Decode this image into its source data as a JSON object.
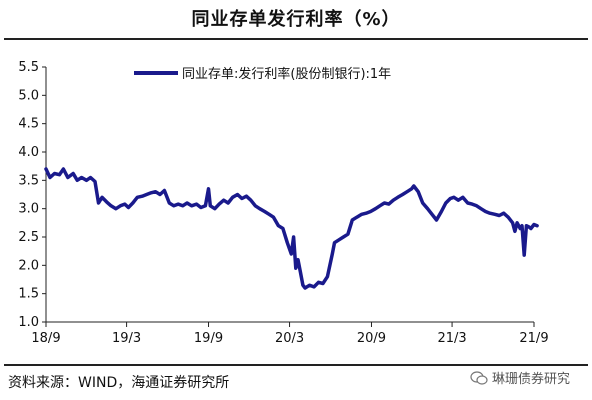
{
  "header": {
    "title": "同业存单发行利率（%）"
  },
  "footer": {
    "source": "资料来源：WIND，海通证券研究所",
    "watermark": "琳珊债券研究"
  },
  "colors": {
    "series": "#1a1a8c",
    "axis": "#222222"
  },
  "chart_data": {
    "type": "line",
    "title": "同业存单发行利率（%）",
    "xlabel": "",
    "ylabel": "",
    "ylim": [
      1.0,
      5.5
    ],
    "yticks": [
      "5.5",
      "5.0",
      "4.5",
      "4.0",
      "3.5",
      "3.0",
      "2.5",
      "2.0",
      "1.5",
      "1.0"
    ],
    "xticks": [
      "18/9",
      "19/3",
      "19/9",
      "20/3",
      "20/9",
      "21/3",
      "21/9"
    ],
    "legend": "top",
    "grid": false,
    "series": [
      {
        "name": "同业存单:发行利率(股份制银行):1年",
        "points": [
          [
            "2018-09-01",
            3.7
          ],
          [
            "2018-09-10",
            3.55
          ],
          [
            "2018-09-20",
            3.62
          ],
          [
            "2018-10-01",
            3.6
          ],
          [
            "2018-10-10",
            3.7
          ],
          [
            "2018-10-20",
            3.55
          ],
          [
            "2018-11-01",
            3.62
          ],
          [
            "2018-11-10",
            3.5
          ],
          [
            "2018-11-20",
            3.55
          ],
          [
            "2018-12-01",
            3.5
          ],
          [
            "2018-12-10",
            3.55
          ],
          [
            "2018-12-20",
            3.48
          ],
          [
            "2018-12-28",
            3.1
          ],
          [
            "2019-01-05",
            3.2
          ],
          [
            "2019-01-15",
            3.12
          ],
          [
            "2019-01-25",
            3.05
          ],
          [
            "2019-02-05",
            3.0
          ],
          [
            "2019-02-15",
            3.05
          ],
          [
            "2019-02-25",
            3.08
          ],
          [
            "2019-03-05",
            3.02
          ],
          [
            "2019-03-15",
            3.1
          ],
          [
            "2019-03-25",
            3.2
          ],
          [
            "2019-04-05",
            3.22
          ],
          [
            "2019-04-15",
            3.25
          ],
          [
            "2019-04-25",
            3.28
          ],
          [
            "2019-05-05",
            3.3
          ],
          [
            "2019-05-15",
            3.25
          ],
          [
            "2019-05-25",
            3.32
          ],
          [
            "2019-06-05",
            3.1
          ],
          [
            "2019-06-15",
            3.05
          ],
          [
            "2019-06-25",
            3.08
          ],
          [
            "2019-07-05",
            3.05
          ],
          [
            "2019-07-15",
            3.1
          ],
          [
            "2019-07-25",
            3.05
          ],
          [
            "2019-08-05",
            3.08
          ],
          [
            "2019-08-15",
            3.02
          ],
          [
            "2019-08-25",
            3.05
          ],
          [
            "2019-09-01",
            3.35
          ],
          [
            "2019-09-05",
            3.05
          ],
          [
            "2019-09-15",
            3.0
          ],
          [
            "2019-09-25",
            3.08
          ],
          [
            "2019-10-05",
            3.15
          ],
          [
            "2019-10-15",
            3.1
          ],
          [
            "2019-10-25",
            3.2
          ],
          [
            "2019-11-05",
            3.25
          ],
          [
            "2019-11-15",
            3.18
          ],
          [
            "2019-11-25",
            3.22
          ],
          [
            "2019-12-05",
            3.15
          ],
          [
            "2019-12-15",
            3.05
          ],
          [
            "2019-12-25",
            3.0
          ],
          [
            "2020-01-05",
            2.95
          ],
          [
            "2020-01-15",
            2.9
          ],
          [
            "2020-01-25",
            2.85
          ],
          [
            "2020-02-05",
            2.7
          ],
          [
            "2020-02-15",
            2.65
          ],
          [
            "2020-02-25",
            2.4
          ],
          [
            "2020-03-05",
            2.2
          ],
          [
            "2020-03-10",
            2.5
          ],
          [
            "2020-03-15",
            1.95
          ],
          [
            "2020-03-20",
            2.1
          ],
          [
            "2020-03-25",
            1.9
          ],
          [
            "2020-03-31",
            1.65
          ],
          [
            "2020-04-05",
            1.6
          ],
          [
            "2020-04-15",
            1.65
          ],
          [
            "2020-04-25",
            1.62
          ],
          [
            "2020-05-05",
            1.7
          ],
          [
            "2020-05-15",
            1.68
          ],
          [
            "2020-05-25",
            1.8
          ],
          [
            "2020-06-05",
            2.2
          ],
          [
            "2020-06-10",
            2.4
          ],
          [
            "2020-06-20",
            2.45
          ],
          [
            "2020-06-30",
            2.5
          ],
          [
            "2020-07-10",
            2.55
          ],
          [
            "2020-07-20",
            2.8
          ],
          [
            "2020-07-30",
            2.85
          ],
          [
            "2020-08-10",
            2.9
          ],
          [
            "2020-08-20",
            2.92
          ],
          [
            "2020-08-30",
            2.95
          ],
          [
            "2020-09-10",
            3.0
          ],
          [
            "2020-09-20",
            3.05
          ],
          [
            "2020-09-30",
            3.1
          ],
          [
            "2020-10-10",
            3.08
          ],
          [
            "2020-10-20",
            3.15
          ],
          [
            "2020-10-30",
            3.2
          ],
          [
            "2020-11-10",
            3.25
          ],
          [
            "2020-11-20",
            3.3
          ],
          [
            "2020-11-30",
            3.35
          ],
          [
            "2020-12-05",
            3.4
          ],
          [
            "2020-12-15",
            3.3
          ],
          [
            "2020-12-25",
            3.1
          ],
          [
            "2021-01-05",
            3.0
          ],
          [
            "2021-01-15",
            2.9
          ],
          [
            "2021-01-25",
            2.8
          ],
          [
            "2021-02-05",
            2.95
          ],
          [
            "2021-02-15",
            3.1
          ],
          [
            "2021-02-25",
            3.18
          ],
          [
            "2021-03-05",
            3.2
          ],
          [
            "2021-03-15",
            3.15
          ],
          [
            "2021-03-25",
            3.2
          ],
          [
            "2021-04-05",
            3.1
          ],
          [
            "2021-04-15",
            3.08
          ],
          [
            "2021-04-25",
            3.05
          ],
          [
            "2021-05-05",
            3.0
          ],
          [
            "2021-05-15",
            2.95
          ],
          [
            "2021-05-25",
            2.92
          ],
          [
            "2021-06-05",
            2.9
          ],
          [
            "2021-06-15",
            2.88
          ],
          [
            "2021-06-25",
            2.92
          ],
          [
            "2021-07-05",
            2.85
          ],
          [
            "2021-07-15",
            2.75
          ],
          [
            "2021-07-20",
            2.6
          ],
          [
            "2021-07-25",
            2.75
          ],
          [
            "2021-08-01",
            2.65
          ],
          [
            "2021-08-05",
            2.7
          ],
          [
            "2021-08-10",
            2.18
          ],
          [
            "2021-08-15",
            2.7
          ],
          [
            "2021-08-20",
            2.68
          ],
          [
            "2021-08-25",
            2.65
          ],
          [
            "2021-09-01",
            2.72
          ],
          [
            "2021-09-08",
            2.7
          ]
        ]
      }
    ]
  }
}
